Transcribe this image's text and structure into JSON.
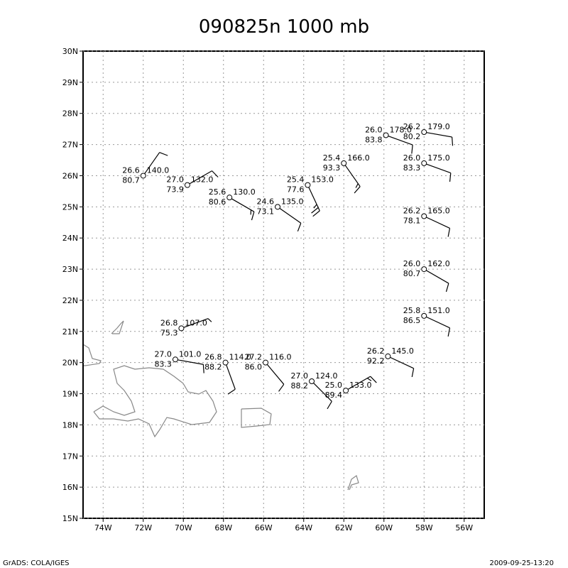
{
  "title": "090825n 1000 mb",
  "footer_left": "GrADS: COLA/IGES",
  "footer_right": "2009-09-25-13:20",
  "map": {
    "xlim": [
      -75,
      -55
    ],
    "ylim": [
      15,
      30
    ],
    "grid": true,
    "xticks": [
      {
        "value": -74,
        "label": "74W"
      },
      {
        "value": -72,
        "label": "72W"
      },
      {
        "value": -70,
        "label": "70W"
      },
      {
        "value": -68,
        "label": "68W"
      },
      {
        "value": -66,
        "label": "66W"
      },
      {
        "value": -64,
        "label": "64W"
      },
      {
        "value": -62,
        "label": "62W"
      },
      {
        "value": -60,
        "label": "60W"
      },
      {
        "value": -58,
        "label": "58W"
      },
      {
        "value": -56,
        "label": "56W"
      }
    ],
    "yticks": [
      {
        "value": 15,
        "label": "15N"
      },
      {
        "value": 16,
        "label": "16N"
      },
      {
        "value": 17,
        "label": "17N"
      },
      {
        "value": 18,
        "label": "18N"
      },
      {
        "value": 19,
        "label": "19N"
      },
      {
        "value": 20,
        "label": "20N"
      },
      {
        "value": 21,
        "label": "21N"
      },
      {
        "value": 22,
        "label": "22N"
      },
      {
        "value": 23,
        "label": "23N"
      },
      {
        "value": 24,
        "label": "24N"
      },
      {
        "value": 25,
        "label": "25N"
      },
      {
        "value": 26,
        "label": "26N"
      },
      {
        "value": 27,
        "label": "27N"
      },
      {
        "value": 28,
        "label": "28N"
      },
      {
        "value": 29,
        "label": "29N"
      },
      {
        "value": 30,
        "label": "30N"
      }
    ],
    "stations": [
      {
        "lon": -72.0,
        "lat": 26.0,
        "temp": "26.6",
        "rh": "80.7",
        "height": "140.0",
        "wind_dir": 35,
        "wind_speed": 10
      },
      {
        "lon": -69.8,
        "lat": 25.7,
        "temp": "27.0",
        "rh": "73.9",
        "height": "132.0",
        "wind_dir": 60,
        "wind_speed": 10
      },
      {
        "lon": -67.7,
        "lat": 25.3,
        "temp": "25.6",
        "rh": "80.6",
        "height": "130.0",
        "wind_dir": 120,
        "wind_speed": 15
      },
      {
        "lon": -65.3,
        "lat": 25.0,
        "temp": "24.6",
        "rh": "73.1",
        "height": "135.0",
        "wind_dir": 125,
        "wind_speed": 10
      },
      {
        "lon": -63.8,
        "lat": 25.7,
        "temp": "25.4",
        "rh": "77.6",
        "height": "153.0",
        "wind_dir": 155,
        "wind_speed": 25
      },
      {
        "lon": -62.0,
        "lat": 26.4,
        "temp": "25.4",
        "rh": "93.3",
        "height": "166.0",
        "wind_dir": 145,
        "wind_speed": 15
      },
      {
        "lon": -59.9,
        "lat": 27.3,
        "temp": "26.0",
        "rh": "83.8",
        "height": "178.0",
        "wind_dir": 110,
        "wind_speed": 10
      },
      {
        "lon": -58.0,
        "lat": 27.4,
        "temp": "26.2",
        "rh": "80.2",
        "height": "179.0",
        "wind_dir": 100,
        "wind_speed": 10
      },
      {
        "lon": -58.0,
        "lat": 26.4,
        "temp": "26.0",
        "rh": "83.3",
        "height": "175.0",
        "wind_dir": 110,
        "wind_speed": 10
      },
      {
        "lon": -58.0,
        "lat": 24.7,
        "temp": "26.2",
        "rh": "78.1",
        "height": "165.0",
        "wind_dir": 115,
        "wind_speed": 10
      },
      {
        "lon": -58.0,
        "lat": 23.0,
        "temp": "26.0",
        "rh": "80.7",
        "height": "162.0",
        "wind_dir": 120,
        "wind_speed": 10
      },
      {
        "lon": -58.0,
        "lat": 21.5,
        "temp": "25.8",
        "rh": "86.5",
        "height": "151.0",
        "wind_dir": 115,
        "wind_speed": 10
      },
      {
        "lon": -70.1,
        "lat": 21.1,
        "temp": "26.8",
        "rh": "75.3",
        "height": "107.0",
        "wind_dir": 70,
        "wind_speed": 5
      },
      {
        "lon": -70.4,
        "lat": 20.1,
        "temp": "27.0",
        "rh": "83.3",
        "height": "101.0",
        "wind_dir": 100,
        "wind_speed": 10
      },
      {
        "lon": -67.9,
        "lat": 20.0,
        "temp": "26.8",
        "rh": "88.2",
        "height": "114.0",
        "wind_dir": 160,
        "wind_speed": 10
      },
      {
        "lon": -65.9,
        "lat": 20.0,
        "temp": "27.2",
        "rh": "86.0",
        "height": "116.0",
        "wind_dir": 140,
        "wind_speed": 10
      },
      {
        "lon": -63.6,
        "lat": 19.4,
        "temp": "27.0",
        "rh": "88.2",
        "height": "124.0",
        "wind_dir": 135,
        "wind_speed": 10
      },
      {
        "lon": -61.9,
        "lat": 19.1,
        "temp": "25.0",
        "rh": "89.4",
        "height": "133.0",
        "wind_dir": 60,
        "wind_speed": 15
      },
      {
        "lon": -59.8,
        "lat": 20.2,
        "temp": "26.2",
        "rh": "92.2",
        "height": "145.0",
        "wind_dir": 115,
        "wind_speed": 10
      }
    ]
  }
}
